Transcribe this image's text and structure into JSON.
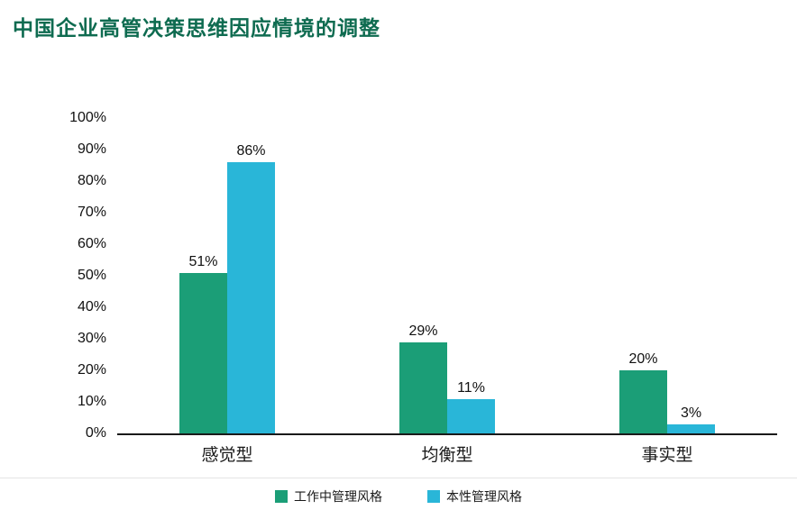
{
  "chart_data": {
    "type": "bar",
    "title": "中国企业高管决策思维因应情境的调整",
    "categories": [
      "感觉型",
      "均衡型",
      "事实型"
    ],
    "series": [
      {
        "name": "工作中管理风格",
        "color": "#1b9e77",
        "values": [
          51,
          29,
          20
        ]
      },
      {
        "name": "本性管理风格",
        "color": "#29b6d8",
        "values": [
          86,
          11,
          3
        ]
      }
    ],
    "xlabel": "",
    "ylabel": "",
    "ylim": [
      0,
      100
    ],
    "ytick_step": 10,
    "ytick_suffix": "%",
    "value_label_suffix": "%",
    "grid": false,
    "legend_position": "bottom"
  },
  "colors": {
    "title_text": "#0e6b50",
    "axis_line": "#1a1a1a",
    "axis_text": "#111111",
    "series_work": "#1b9e77",
    "series_nature": "#29b6d8"
  }
}
